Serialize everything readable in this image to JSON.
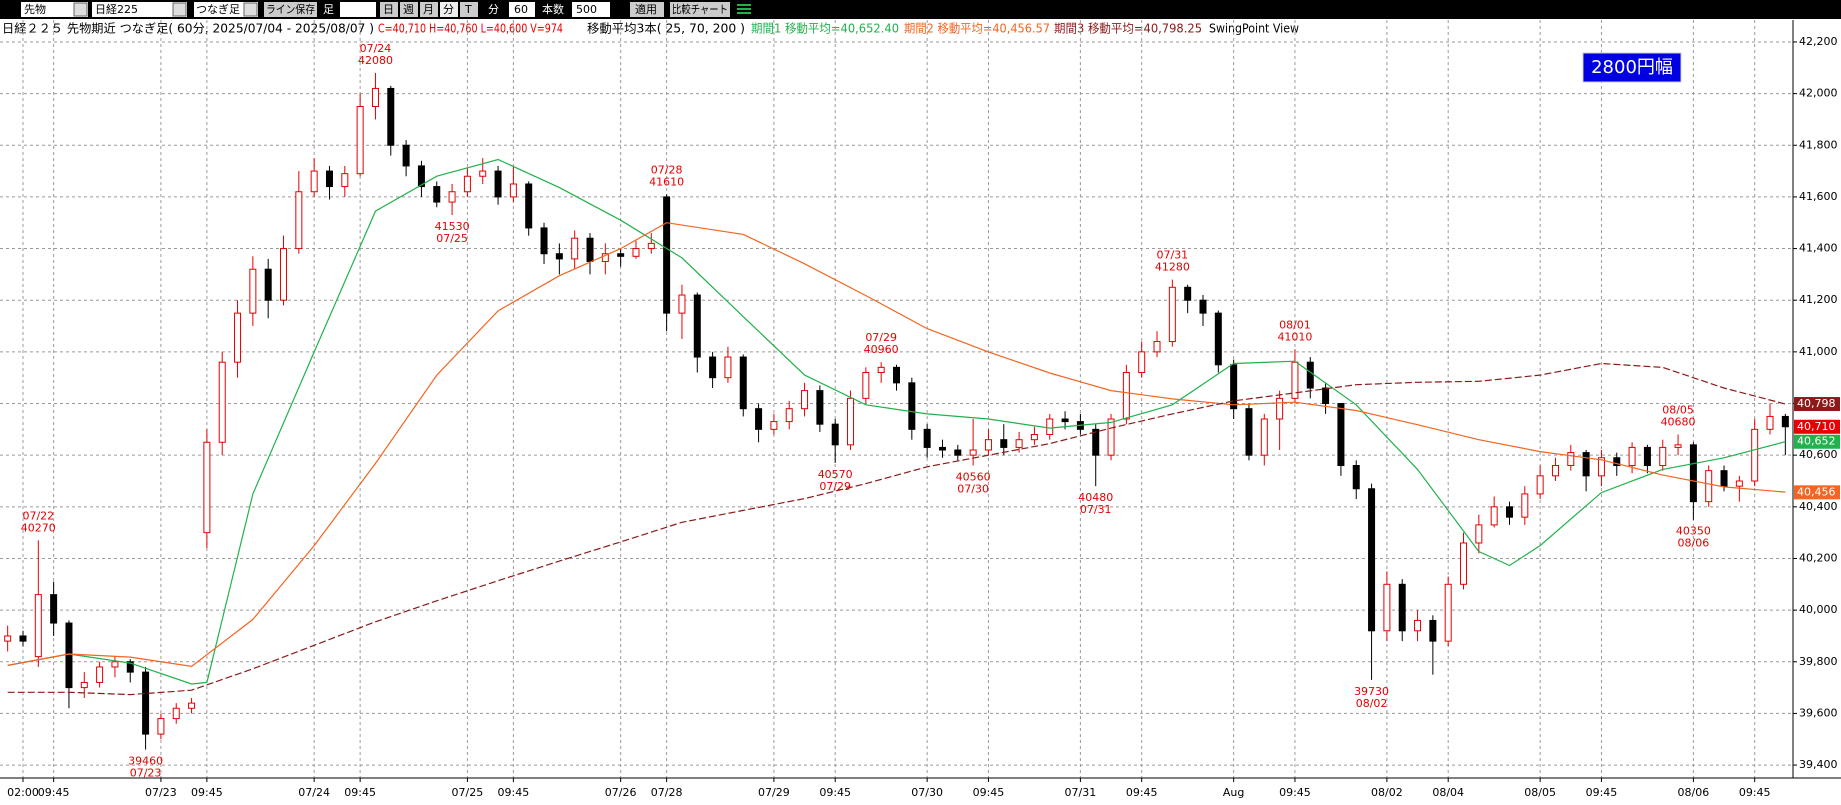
{
  "toolbar": {
    "market": "先物",
    "symbol": "日経225",
    "bar_type": "つなぎ足",
    "save_line": "ライン保存",
    "foot": "足",
    "day": "日",
    "week": "週",
    "month": "月",
    "minute": "分",
    "tick": "T",
    "minute_label": "分",
    "interval": "60",
    "count_label": "本数",
    "count": "500",
    "apply": "適用",
    "compare": "比較チャート"
  },
  "info": {
    "title": "日経２２５ 先物期近 つなぎ足( 60分, 2025/07/04 - 2025/08/07 )",
    "ohlcv": "C=40,710 H=40,760 L=40,600 V=974",
    "ma_title": "移動平均3本( 25, 70, 200 )",
    "ma1": "期間1 移動平均=40,652.40",
    "ma2": "期間2 移動平均=40,456.57",
    "ma3": "期間3 移動平均=40,798.25",
    "view": "SwingPoint View"
  },
  "chart_data": {
    "type": "candlestick",
    "badge": "2800円幅",
    "up_color": "#e60000",
    "down_color": "#000000",
    "grid": true,
    "ylim": [
      39350,
      42285
    ],
    "yticks": [
      {
        "value": 39400,
        "label": "39,400"
      },
      {
        "value": 39600,
        "label": "39,600"
      },
      {
        "value": 39800,
        "label": "39,800"
      },
      {
        "value": 40000,
        "label": "40,000"
      },
      {
        "value": 40200,
        "label": "40,200"
      },
      {
        "value": 40400,
        "label": "40,400"
      },
      {
        "value": 40600,
        "label": "40,600"
      },
      {
        "value": 40800,
        "label": "40,800"
      },
      {
        "value": 41000,
        "label": "41,000"
      },
      {
        "value": 41200,
        "label": "41,200"
      },
      {
        "value": 41400,
        "label": "41,400"
      },
      {
        "value": 41600,
        "label": "41,600"
      },
      {
        "value": 41800,
        "label": "41,800"
      },
      {
        "value": 42000,
        "label": "42,000"
      },
      {
        "value": 42200,
        "label": "42,200"
      }
    ],
    "categories": [
      null,
      "02:00",
      null,
      "09:45",
      null,
      null,
      null,
      null,
      null,
      null,
      "07/23",
      null,
      null,
      "09:45",
      null,
      null,
      null,
      null,
      null,
      null,
      "07/24",
      null,
      null,
      "09:45",
      null,
      null,
      null,
      null,
      null,
      null,
      "07/25",
      null,
      null,
      "09:45",
      null,
      null,
      null,
      null,
      null,
      null,
      "07/26",
      null,
      null,
      "07/28",
      null,
      null,
      null,
      null,
      null,
      null,
      "07/29",
      null,
      null,
      null,
      "09:45",
      null,
      null,
      null,
      null,
      null,
      "07/30",
      null,
      null,
      null,
      "09:45",
      null,
      null,
      null,
      null,
      null,
      "07/31",
      null,
      null,
      null,
      "09:45",
      null,
      null,
      null,
      null,
      null,
      "Aug",
      null,
      null,
      null,
      "09:45",
      null,
      null,
      null,
      null,
      null,
      "08/02",
      null,
      null,
      null,
      "08/04",
      null,
      null,
      null,
      null,
      null,
      "08/05",
      null,
      null,
      null,
      "09:45",
      null,
      null,
      null,
      null,
      null,
      "08/06",
      null,
      null,
      null,
      "09:45",
      null,
      null
    ],
    "open": [
      39880,
      39900,
      39820,
      40060,
      39950,
      39700,
      39720,
      39780,
      39800,
      39760,
      39520,
      39580,
      39620,
      40300,
      40650,
      40960,
      41150,
      41320,
      41200,
      41400,
      41620,
      41700,
      41640,
      41690,
      41950,
      42020,
      41800,
      41720,
      41640,
      41580,
      41620,
      41680,
      41700,
      41600,
      41650,
      41480,
      41380,
      41360,
      41440,
      41350,
      41380,
      41370,
      41400,
      41600,
      41150,
      41220,
      40980,
      40900,
      40980,
      40780,
      40700,
      40730,
      40780,
      40850,
      40720,
      40640,
      40820,
      40920,
      40940,
      40880,
      40700,
      40630,
      40620,
      40600,
      40620,
      40660,
      40630,
      40660,
      40680,
      40740,
      40730,
      40700,
      40600,
      40740,
      40920,
      41000,
      41040,
      41250,
      41200,
      41150,
      40950,
      40780,
      40600,
      40740,
      40820,
      40960,
      40860,
      40800,
      40560,
      40470,
      39920,
      40100,
      39920,
      39960,
      39880,
      40100,
      40260,
      40330,
      40400,
      40360,
      40450,
      40520,
      40560,
      40610,
      40520,
      40590,
      40560,
      40630,
      40560,
      40630,
      40640,
      40420,
      40540,
      40480,
      40500,
      40700,
      40750
    ],
    "high": [
      39940,
      39920,
      40270,
      40110,
      39960,
      39760,
      39800,
      39820,
      39810,
      39780,
      39600,
      39640,
      39660,
      40700,
      41000,
      41200,
      41370,
      41360,
      41450,
      41700,
      41750,
      41720,
      41720,
      42000,
      42080,
      42030,
      41820,
      41740,
      41660,
      41650,
      41710,
      41750,
      41720,
      41720,
      41660,
      41500,
      41420,
      41470,
      41460,
      41420,
      41400,
      41430,
      41460,
      41610,
      41260,
      41230,
      41000,
      41020,
      40990,
      40800,
      40760,
      40810,
      40880,
      40870,
      40740,
      40850,
      40940,
      40960,
      40950,
      40900,
      40720,
      40660,
      40640,
      40740,
      40700,
      40720,
      40690,
      40710,
      40760,
      40770,
      40760,
      40720,
      40760,
      40950,
      41040,
      41080,
      41280,
      41260,
      41220,
      41160,
      40970,
      40800,
      40760,
      40850,
      41010,
      40980,
      40880,
      40800,
      40580,
      40490,
      40150,
      40120,
      40000,
      39980,
      40130,
      40300,
      40370,
      40440,
      40420,
      40480,
      40560,
      40590,
      40640,
      40620,
      40620,
      40610,
      40650,
      40640,
      40660,
      40680,
      40650,
      40560,
      40560,
      40520,
      40740,
      40800,
      40760
    ],
    "low": [
      39840,
      39860,
      39780,
      39900,
      39620,
      39660,
      39700,
      39740,
      39720,
      39460,
      39500,
      39560,
      39600,
      40240,
      40600,
      40900,
      41100,
      41130,
      41180,
      41380,
      41600,
      41590,
      41600,
      41680,
      41900,
      41760,
      41680,
      41600,
      41560,
      41530,
      41600,
      41650,
      41570,
      41580,
      41450,
      41340,
      41300,
      41320,
      41300,
      41300,
      41330,
      41360,
      41380,
      41080,
      41050,
      40920,
      40860,
      40880,
      40750,
      40650,
      40680,
      40700,
      40750,
      40690,
      40570,
      40620,
      40800,
      40880,
      40850,
      40660,
      40590,
      40590,
      40580,
      40560,
      40600,
      40600,
      40610,
      40640,
      40660,
      40700,
      40680,
      40480,
      40580,
      40720,
      40900,
      40980,
      41020,
      41150,
      41100,
      40920,
      40740,
      40580,
      40560,
      40620,
      40800,
      40820,
      40760,
      40520,
      40430,
      39730,
      39880,
      39880,
      39880,
      39750,
      39860,
      40080,
      40220,
      40320,
      40330,
      40330,
      40430,
      40500,
      40540,
      40460,
      40480,
      40520,
      40530,
      40530,
      40540,
      40600,
      40350,
      40400,
      40460,
      40420,
      40480,
      40680,
      40600
    ],
    "close": [
      39900,
      39880,
      40060,
      39950,
      39700,
      39720,
      39780,
      39800,
      39760,
      39520,
      39580,
      39620,
      39640,
      40650,
      40960,
      41150,
      41320,
      41200,
      41400,
      41620,
      41700,
      41640,
      41690,
      41950,
      42020,
      41800,
      41720,
      41640,
      41580,
      41620,
      41680,
      41700,
      41600,
      41650,
      41480,
      41380,
      41360,
      41440,
      41350,
      41380,
      41370,
      41400,
      41420,
      41150,
      41220,
      40980,
      40900,
      40980,
      40780,
      40700,
      40730,
      40780,
      40850,
      40720,
      40640,
      40820,
      40920,
      40940,
      40880,
      40700,
      40630,
      40620,
      40600,
      40620,
      40660,
      40630,
      40660,
      40680,
      40740,
      40730,
      40700,
      40600,
      40740,
      40920,
      41000,
      41040,
      41250,
      41200,
      41150,
      40950,
      40780,
      40600,
      40740,
      40820,
      40960,
      40860,
      40800,
      40560,
      40470,
      39920,
      40100,
      39920,
      39960,
      39880,
      40100,
      40260,
      40330,
      40400,
      40360,
      40450,
      40520,
      40560,
      40610,
      40520,
      40590,
      40560,
      40630,
      40560,
      40630,
      40640,
      40420,
      40540,
      40480,
      40500,
      40700,
      40750,
      40710
    ],
    "moving_averages": [
      {
        "color": "#22b14c",
        "dashed": false,
        "x": [
          0,
          4,
          8,
          12,
          13,
          16,
          20,
          24,
          28,
          32,
          36,
          40,
          44,
          48,
          52,
          56,
          60,
          64,
          68,
          72,
          76,
          80,
          84,
          88,
          92,
          96,
          98,
          100,
          104,
          108,
          112,
          116
        ],
        "values": [
          39786,
          39830,
          39795,
          39714,
          39720,
          40450,
          41000,
          41545,
          41680,
          41745,
          41636,
          41510,
          41364,
          41136,
          40910,
          40795,
          40760,
          40740,
          40705,
          40727,
          40795,
          40955,
          40964,
          40795,
          40545,
          40227,
          40173,
          40250,
          40455,
          40545,
          40590,
          40652
        ]
      },
      {
        "color": "#f26522",
        "dashed": false,
        "x": [
          0,
          4,
          8,
          12,
          16,
          20,
          24,
          28,
          32,
          36,
          40,
          43,
          48,
          52,
          56,
          60,
          64,
          68,
          72,
          76,
          80,
          84,
          88,
          92,
          96,
          100,
          104,
          108,
          112,
          116
        ],
        "values": [
          39786,
          39830,
          39818,
          39782,
          39964,
          40250,
          40568,
          40910,
          41159,
          41295,
          41400,
          41500,
          41455,
          41341,
          41218,
          41090,
          41000,
          40918,
          40850,
          40818,
          40795,
          40805,
          40773,
          40718,
          40660,
          40614,
          40582,
          40523,
          40477,
          40457
        ]
      },
      {
        "color": "#8b1a1a",
        "dashed": true,
        "x": [
          0,
          4,
          8,
          12,
          16,
          20,
          24,
          28,
          32,
          36,
          40,
          44,
          48,
          52,
          56,
          60,
          64,
          68,
          72,
          76,
          80,
          84,
          88,
          92,
          96,
          100,
          104,
          108,
          112,
          116
        ],
        "values": [
          39682,
          39682,
          39673,
          39690,
          39773,
          39864,
          39955,
          40036,
          40114,
          40190,
          40264,
          40340,
          40386,
          40432,
          40490,
          40555,
          40600,
          40645,
          40705,
          40760,
          40810,
          40841,
          40873,
          40882,
          40886,
          40910,
          40955,
          40940,
          40860,
          40798
        ]
      }
    ],
    "annotations": [
      {
        "x": 2,
        "date": "07/22",
        "value": 40270,
        "position": "above"
      },
      {
        "x": 9,
        "date": "07/23",
        "value": 39460,
        "position": "below"
      },
      {
        "x": 24,
        "date": "07/24",
        "value": 42080,
        "position": "above"
      },
      {
        "x": 29,
        "date": "07/25",
        "value": 41530,
        "position": "below"
      },
      {
        "x": 43,
        "date": "07/28",
        "value": 41610,
        "position": "above"
      },
      {
        "x": 54,
        "date": "07/29",
        "value": 40570,
        "position": "below"
      },
      {
        "x": 57,
        "date": "07/29",
        "value": 40960,
        "position": "above"
      },
      {
        "x": 63,
        "date": "07/30",
        "value": 40560,
        "position": "below"
      },
      {
        "x": 71,
        "date": "07/31",
        "value": 40480,
        "position": "below"
      },
      {
        "x": 76,
        "date": "07/31",
        "value": 41280,
        "position": "above"
      },
      {
        "x": 84,
        "date": "08/01",
        "value": 41010,
        "position": "above"
      },
      {
        "x": 89,
        "date": "08/02",
        "value": 39730,
        "position": "below"
      },
      {
        "x": 109,
        "date": "08/05",
        "value": 40680,
        "position": "above"
      },
      {
        "x": 110,
        "date": "08/06",
        "value": 40350,
        "position": "below"
      }
    ],
    "price_tags": [
      {
        "value": 40798,
        "label": "40,798",
        "color": "#8b1a1a"
      },
      {
        "value": 40710,
        "label": "40,710",
        "color": "#e60000"
      },
      {
        "value": 40652,
        "label": "40,652",
        "color": "#22b14c"
      },
      {
        "value": 40456,
        "label": "40,456",
        "color": "#f26522"
      }
    ]
  }
}
